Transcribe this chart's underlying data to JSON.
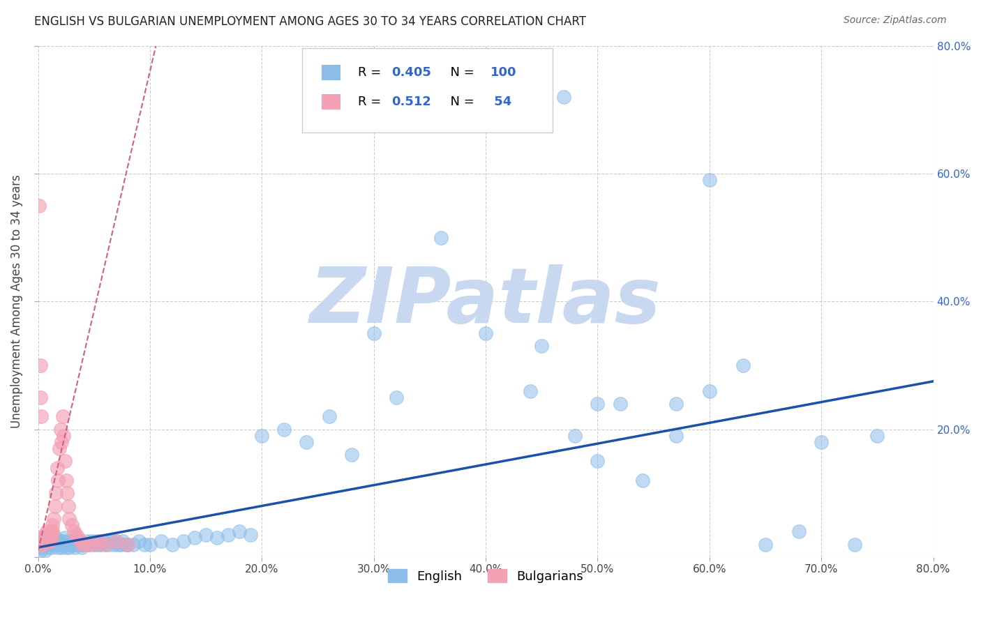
{
  "title": "ENGLISH VS BULGARIAN UNEMPLOYMENT AMONG AGES 30 TO 34 YEARS CORRELATION CHART",
  "source": "Source: ZipAtlas.com",
  "ylabel": "Unemployment Among Ages 30 to 34 years",
  "xlim": [
    0.0,
    0.8
  ],
  "ylim": [
    0.0,
    0.8
  ],
  "english_R": 0.405,
  "english_N": 100,
  "bulgarian_R": 0.512,
  "bulgarian_N": 54,
  "english_color": "#8BBDE8",
  "bulgarian_color": "#F4A0B5",
  "english_line_color": "#1A52A8",
  "bulgarian_line_color": "#D06080",
  "watermark": "ZIPatlas",
  "watermark_color": "#C8D8F0",
  "eng_x": [
    0.001,
    0.002,
    0.003,
    0.004,
    0.005,
    0.006,
    0.007,
    0.008,
    0.009,
    0.01,
    0.011,
    0.012,
    0.013,
    0.014,
    0.015,
    0.016,
    0.017,
    0.018,
    0.019,
    0.02,
    0.021,
    0.022,
    0.023,
    0.024,
    0.025,
    0.026,
    0.027,
    0.028,
    0.029,
    0.03,
    0.031,
    0.032,
    0.033,
    0.034,
    0.035,
    0.036,
    0.037,
    0.038,
    0.039,
    0.04,
    0.042,
    0.044,
    0.046,
    0.048,
    0.05,
    0.052,
    0.054,
    0.056,
    0.058,
    0.06,
    0.062,
    0.064,
    0.066,
    0.068,
    0.07,
    0.072,
    0.074,
    0.076,
    0.078,
    0.08,
    0.085,
    0.09,
    0.095,
    0.1,
    0.11,
    0.12,
    0.13,
    0.14,
    0.15,
    0.16,
    0.17,
    0.18,
    0.19,
    0.2,
    0.22,
    0.24,
    0.26,
    0.28,
    0.3,
    0.32,
    0.36,
    0.4,
    0.44,
    0.47,
    0.5,
    0.52,
    0.54,
    0.57,
    0.6,
    0.63,
    0.65,
    0.68,
    0.7,
    0.73,
    0.75,
    0.57,
    0.6,
    0.45,
    0.48,
    0.5
  ],
  "eng_y": [
    0.02,
    0.01,
    0.03,
    0.015,
    0.025,
    0.01,
    0.02,
    0.03,
    0.015,
    0.02,
    0.025,
    0.015,
    0.03,
    0.02,
    0.025,
    0.03,
    0.02,
    0.015,
    0.025,
    0.02,
    0.015,
    0.025,
    0.02,
    0.03,
    0.015,
    0.025,
    0.02,
    0.015,
    0.025,
    0.02,
    0.025,
    0.02,
    0.015,
    0.025,
    0.02,
    0.025,
    0.02,
    0.025,
    0.015,
    0.02,
    0.02,
    0.025,
    0.02,
    0.025,
    0.02,
    0.025,
    0.02,
    0.02,
    0.025,
    0.02,
    0.025,
    0.02,
    0.025,
    0.02,
    0.025,
    0.02,
    0.02,
    0.025,
    0.02,
    0.02,
    0.02,
    0.025,
    0.02,
    0.02,
    0.025,
    0.02,
    0.025,
    0.03,
    0.035,
    0.03,
    0.035,
    0.04,
    0.035,
    0.19,
    0.2,
    0.18,
    0.22,
    0.16,
    0.35,
    0.25,
    0.5,
    0.35,
    0.26,
    0.72,
    0.15,
    0.24,
    0.12,
    0.19,
    0.59,
    0.3,
    0.02,
    0.04,
    0.18,
    0.02,
    0.19,
    0.24,
    0.26,
    0.33,
    0.19,
    0.24
  ],
  "bul_x": [
    0.001,
    0.002,
    0.003,
    0.003,
    0.004,
    0.005,
    0.005,
    0.006,
    0.006,
    0.007,
    0.007,
    0.008,
    0.008,
    0.009,
    0.009,
    0.01,
    0.01,
    0.011,
    0.011,
    0.012,
    0.012,
    0.013,
    0.013,
    0.014,
    0.015,
    0.016,
    0.017,
    0.018,
    0.019,
    0.02,
    0.021,
    0.022,
    0.023,
    0.024,
    0.025,
    0.026,
    0.027,
    0.028,
    0.03,
    0.032,
    0.034,
    0.036,
    0.038,
    0.04,
    0.045,
    0.05,
    0.055,
    0.06,
    0.07,
    0.08,
    0.001,
    0.002,
    0.002,
    0.003
  ],
  "bul_y": [
    0.025,
    0.02,
    0.03,
    0.025,
    0.02,
    0.03,
    0.025,
    0.035,
    0.025,
    0.03,
    0.025,
    0.04,
    0.03,
    0.035,
    0.025,
    0.04,
    0.03,
    0.035,
    0.025,
    0.04,
    0.03,
    0.05,
    0.04,
    0.06,
    0.08,
    0.1,
    0.14,
    0.12,
    0.17,
    0.2,
    0.18,
    0.22,
    0.19,
    0.15,
    0.12,
    0.1,
    0.08,
    0.06,
    0.05,
    0.04,
    0.035,
    0.03,
    0.025,
    0.02,
    0.02,
    0.02,
    0.025,
    0.02,
    0.025,
    0.02,
    0.55,
    0.3,
    0.25,
    0.22
  ]
}
